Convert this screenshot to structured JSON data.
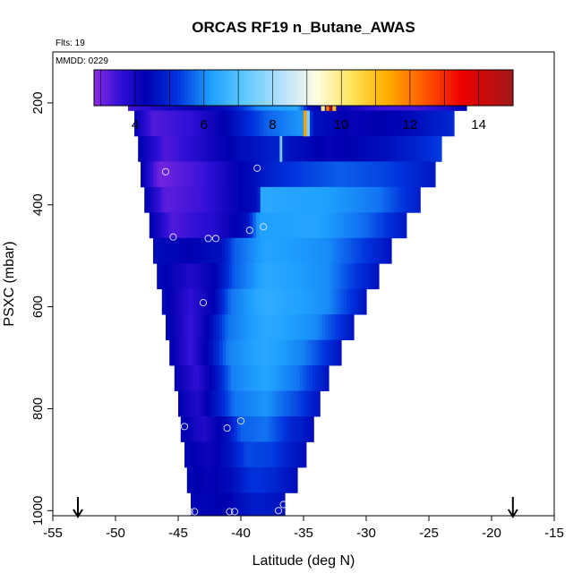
{
  "chart_data": {
    "type": "heatmap",
    "title": "ORCAS RF19 n_Butane_AWAS",
    "subtitle_flts": "Flts: 19",
    "subtitle_date": "MMDD: 0229",
    "xlabel": "Latitude (deg N)",
    "ylabel": "PSXC (mbar)",
    "xlim": [
      -55,
      -15
    ],
    "ylim": [
      1010,
      100
    ],
    "x_ticks": [
      -55,
      -50,
      -45,
      -40,
      -35,
      -30,
      -25,
      -20,
      -15
    ],
    "y_ticks": [
      200,
      400,
      600,
      800,
      1000
    ],
    "colorbar": {
      "range": [
        2.8,
        15
      ],
      "ticks": [
        4,
        6,
        8,
        10,
        12,
        14
      ],
      "stops": [
        {
          "v": 2.8,
          "c": "#8a2be2"
        },
        {
          "v": 3.6,
          "c": "#2f0fd6"
        },
        {
          "v": 4.3,
          "c": "#0000b0"
        },
        {
          "v": 5.2,
          "c": "#0033dd"
        },
        {
          "v": 6.2,
          "c": "#1ea0ff"
        },
        {
          "v": 7.2,
          "c": "#5fc8ff"
        },
        {
          "v": 8.3,
          "c": "#b9e2ff"
        },
        {
          "v": 9.3,
          "c": "#fffde0"
        },
        {
          "v": 10.3,
          "c": "#ffe45a"
        },
        {
          "v": 11.3,
          "c": "#ffb000"
        },
        {
          "v": 12.4,
          "c": "#ff5a00"
        },
        {
          "v": 13.5,
          "c": "#ee0000"
        },
        {
          "v": 15,
          "c": "#a01818"
        }
      ]
    },
    "arrows_latitude": [
      -53,
      -18.3
    ],
    "layers": [
      {
        "p": 190,
        "lat0": -49,
        "lat1": -22,
        "profile": [
          [
            -49,
            3.4
          ],
          [
            -47,
            3.8
          ],
          [
            -44,
            4.2
          ],
          [
            -41,
            4.6
          ],
          [
            -38.5,
            6.0
          ],
          [
            -35.5,
            6.4
          ],
          [
            -34.5,
            4.5
          ],
          [
            -32,
            4.2
          ],
          [
            -29,
            3.5
          ],
          [
            -26,
            3.4
          ],
          [
            -24,
            3.7
          ],
          [
            -22,
            4.3
          ]
        ]
      },
      {
        "p": 240,
        "lat0": -48.5,
        "lat1": -23,
        "profile": [
          [
            -48.5,
            4.3
          ],
          [
            -47,
            3.3
          ],
          [
            -44,
            3.6
          ],
          [
            -41,
            4.4
          ],
          [
            -38,
            5.6
          ],
          [
            -34.8,
            6.2
          ],
          [
            -34.2,
            4.6
          ],
          [
            -31,
            4.2
          ],
          [
            -27,
            4.4
          ],
          [
            -23,
            5.0
          ]
        ]
      },
      {
        "p": 290,
        "lat0": -48.2,
        "lat1": -24,
        "profile": [
          [
            -48.2,
            4.4
          ],
          [
            -46,
            3.3
          ],
          [
            -43,
            3.9
          ],
          [
            -40,
            4.5
          ],
          [
            -37,
            4.9
          ],
          [
            -36,
            4.6
          ],
          [
            -33,
            4.2
          ],
          [
            -29,
            4.5
          ],
          [
            -26,
            4.9
          ],
          [
            -24,
            5.3
          ]
        ]
      },
      {
        "p": 340,
        "lat0": -48,
        "lat1": -24.5,
        "profile": [
          [
            -48,
            4.4
          ],
          [
            -46.5,
            3.0
          ],
          [
            -43,
            3.5
          ],
          [
            -40,
            4.3
          ],
          [
            -38,
            4.8
          ],
          [
            -36,
            5.2
          ],
          [
            -32,
            5.6
          ],
          [
            -28,
            5.3
          ],
          [
            -24.5,
            4.7
          ]
        ]
      },
      {
        "p": 390,
        "lat0": -47.7,
        "lat1": -25.7,
        "profile": [
          [
            -47.7,
            4.4
          ],
          [
            -46,
            3.2
          ],
          [
            -43,
            3.5
          ],
          [
            -40,
            4.3
          ],
          [
            -38.6,
            4.6
          ],
          [
            -38.4,
            6.4
          ],
          [
            -33,
            6.2
          ],
          [
            -29,
            5.8
          ],
          [
            -25.7,
            4.8
          ]
        ]
      },
      {
        "p": 440,
        "lat0": -47.3,
        "lat1": -26.8,
        "profile": [
          [
            -47.3,
            4.4
          ],
          [
            -45.5,
            3.3
          ],
          [
            -42,
            3.8
          ],
          [
            -39.5,
            4.6
          ],
          [
            -38.6,
            6.2
          ],
          [
            -34,
            6.3
          ],
          [
            -30,
            5.7
          ],
          [
            -26.8,
            4.7
          ]
        ]
      },
      {
        "p": 490,
        "lat0": -47,
        "lat1": -28,
        "profile": [
          [
            -47,
            4.5
          ],
          [
            -44,
            4.3
          ],
          [
            -41.5,
            4.6
          ],
          [
            -40.5,
            5.6
          ],
          [
            -38,
            6.3
          ],
          [
            -33,
            6.0
          ],
          [
            -30,
            5.2
          ],
          [
            -28,
            4.6
          ]
        ]
      },
      {
        "p": 540,
        "lat0": -46.7,
        "lat1": -29,
        "profile": [
          [
            -46.7,
            4.5
          ],
          [
            -44,
            3.8
          ],
          [
            -42,
            4.3
          ],
          [
            -40.5,
            5.6
          ],
          [
            -38,
            6.4
          ],
          [
            -33,
            6.0
          ],
          [
            -30.5,
            5.1
          ],
          [
            -29,
            4.6
          ]
        ]
      },
      {
        "p": 590,
        "lat0": -46.3,
        "lat1": -30,
        "profile": [
          [
            -46.3,
            4.5
          ],
          [
            -44,
            3.6
          ],
          [
            -42,
            4.4
          ],
          [
            -40.8,
            5.8
          ],
          [
            -38,
            6.5
          ],
          [
            -33,
            6.0
          ],
          [
            -31,
            5.1
          ],
          [
            -30,
            4.6
          ]
        ]
      },
      {
        "p": 640,
        "lat0": -46,
        "lat1": -31,
        "profile": [
          [
            -46,
            4.5
          ],
          [
            -44,
            3.5
          ],
          [
            -42.3,
            4.5
          ],
          [
            -41,
            5.8
          ],
          [
            -38,
            6.4
          ],
          [
            -34,
            6.0
          ],
          [
            -32,
            5.1
          ],
          [
            -31,
            4.6
          ]
        ]
      },
      {
        "p": 690,
        "lat0": -45.7,
        "lat1": -32,
        "profile": [
          [
            -45.7,
            4.4
          ],
          [
            -44,
            3.5
          ],
          [
            -42.3,
            4.6
          ],
          [
            -41,
            5.9
          ],
          [
            -38,
            6.4
          ],
          [
            -35,
            5.9
          ],
          [
            -33,
            5.1
          ],
          [
            -32,
            4.6
          ]
        ]
      },
      {
        "p": 740,
        "lat0": -45.3,
        "lat1": -33,
        "profile": [
          [
            -45.3,
            4.3
          ],
          [
            -43.5,
            3.6
          ],
          [
            -42,
            4.6
          ],
          [
            -40.7,
            5.9
          ],
          [
            -38,
            6.3
          ],
          [
            -35.5,
            5.8
          ],
          [
            -34,
            5.1
          ],
          [
            -33,
            4.6
          ]
        ]
      },
      {
        "p": 790,
        "lat0": -45,
        "lat1": -33.7,
        "profile": [
          [
            -45,
            4.3
          ],
          [
            -43.5,
            3.8
          ],
          [
            -41.8,
            4.8
          ],
          [
            -40.5,
            5.8
          ],
          [
            -38,
            6.1
          ],
          [
            -35.5,
            5.4
          ],
          [
            -33.7,
            4.6
          ]
        ]
      },
      {
        "p": 840,
        "lat0": -44.8,
        "lat1": -34.2,
        "profile": [
          [
            -44.8,
            4.4
          ],
          [
            -43,
            3.8
          ],
          [
            -41,
            4.6
          ],
          [
            -40,
            5.6
          ],
          [
            -38,
            5.8
          ],
          [
            -36,
            5.0
          ],
          [
            -34.2,
            4.5
          ]
        ]
      },
      {
        "p": 890,
        "lat0": -44.5,
        "lat1": -34.8,
        "profile": [
          [
            -44.5,
            4.4
          ],
          [
            -42.5,
            4.1
          ],
          [
            -41,
            4.6
          ],
          [
            -39.5,
            5.4
          ],
          [
            -37.5,
            5.3
          ],
          [
            -36,
            4.8
          ],
          [
            -34.8,
            4.5
          ]
        ]
      },
      {
        "p": 940,
        "lat0": -44.3,
        "lat1": -35.5,
        "profile": [
          [
            -44.3,
            4.4
          ],
          [
            -42.5,
            4.2
          ],
          [
            -40.8,
            4.5
          ],
          [
            -39,
            5.2
          ],
          [
            -37.5,
            5.0
          ],
          [
            -35.5,
            4.5
          ]
        ]
      },
      {
        "p": 990,
        "lat0": -44,
        "lat1": -36.5,
        "profile": [
          [
            -44,
            4.4
          ],
          [
            -41,
            4.3
          ],
          [
            -40,
            4.6
          ],
          [
            -38.5,
            4.8
          ],
          [
            -36.5,
            4.6
          ]
        ]
      }
    ],
    "overrides": [
      {
        "p": 190,
        "lat": -33.6,
        "w": 0.3,
        "v": 10.0
      },
      {
        "p": 190,
        "lat": -33.2,
        "w": 0.25,
        "v": 12.0
      },
      {
        "p": 190,
        "lat": -32.95,
        "w": 0.2,
        "v": 14.5
      },
      {
        "p": 190,
        "lat": -32.7,
        "w": 0.3,
        "v": 11.0
      },
      {
        "p": 190,
        "lat": -32.4,
        "w": 0.25,
        "v": 4.0
      },
      {
        "p": 240,
        "lat": -35.0,
        "w": 0.25,
        "v": 11.5
      },
      {
        "p": 240,
        "lat": -34.75,
        "w": 0.25,
        "v": 7.5
      },
      {
        "p": 290,
        "lat": -36.9,
        "w": 0.2,
        "v": 7.5
      }
    ],
    "samples": [
      {
        "x": -49.0,
        "y": 190
      },
      {
        "x": -48.3,
        "y": 190
      },
      {
        "x": -47.5,
        "y": 190
      },
      {
        "x": -46.8,
        "y": 190
      },
      {
        "x": -35.1,
        "y": 190
      },
      {
        "x": -34.4,
        "y": 190
      },
      {
        "x": -33.7,
        "y": 190
      },
      {
        "x": -33.0,
        "y": 190
      },
      {
        "x": -32.3,
        "y": 190
      },
      {
        "x": -31.6,
        "y": 190
      },
      {
        "x": -30.0,
        "y": 190
      },
      {
        "x": -29.3,
        "y": 190
      },
      {
        "x": -28.6,
        "y": 190
      },
      {
        "x": -27.9,
        "y": 190
      },
      {
        "x": -27.2,
        "y": 190
      },
      {
        "x": -26.5,
        "y": 190
      },
      {
        "x": -25.0,
        "y": 190
      },
      {
        "x": -24.3,
        "y": 190
      },
      {
        "x": -23.6,
        "y": 190
      },
      {
        "x": -22.9,
        "y": 190
      },
      {
        "x": -22.2,
        "y": 190
      },
      {
        "x": -46.0,
        "y": 335
      },
      {
        "x": -38.7,
        "y": 328
      },
      {
        "x": -38.2,
        "y": 443
      },
      {
        "x": -39.3,
        "y": 450
      },
      {
        "x": -45.4,
        "y": 463
      },
      {
        "x": -42.6,
        "y": 466
      },
      {
        "x": -42.0,
        "y": 466
      },
      {
        "x": -43.0,
        "y": 592
      },
      {
        "x": -40.0,
        "y": 824
      },
      {
        "x": -44.5,
        "y": 835
      },
      {
        "x": -41.1,
        "y": 838
      },
      {
        "x": -36.6,
        "y": 988
      },
      {
        "x": -37.0,
        "y": 1000
      },
      {
        "x": -44.1,
        "y": 1002
      },
      {
        "x": -43.7,
        "y": 1002
      },
      {
        "x": -40.9,
        "y": 1002
      },
      {
        "x": -40.5,
        "y": 1002
      }
    ]
  }
}
